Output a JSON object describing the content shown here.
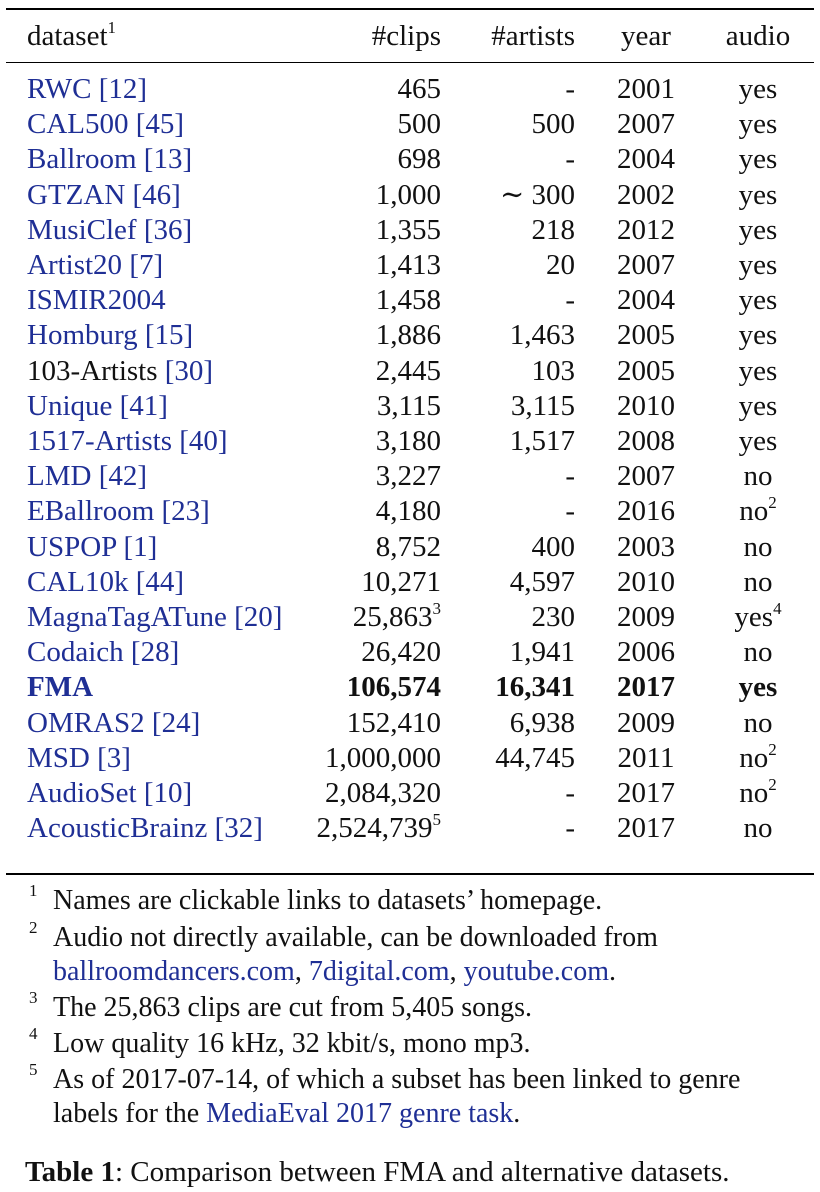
{
  "header": {
    "dataset": "dataset",
    "dataset_mark": "1",
    "clips": "#clips",
    "artists": "#artists",
    "year": "year",
    "audio": "audio"
  },
  "rows": [
    {
      "name": "RWC",
      "ref": "[12]",
      "clips": "465",
      "clips_mark": "",
      "artists": "-",
      "year": "2001",
      "audio": "yes",
      "audio_mark": ""
    },
    {
      "name": "CAL500",
      "ref": "[45]",
      "clips": "500",
      "clips_mark": "",
      "artists": "500",
      "year": "2007",
      "audio": "yes",
      "audio_mark": ""
    },
    {
      "name": "Ballroom",
      "ref": "[13]",
      "clips": "698",
      "clips_mark": "",
      "artists": "-",
      "year": "2004",
      "audio": "yes",
      "audio_mark": ""
    },
    {
      "name": "GTZAN",
      "ref": "[46]",
      "clips": "1,000",
      "clips_mark": "",
      "artists": "∼ 300",
      "year": "2002",
      "audio": "yes",
      "audio_mark": ""
    },
    {
      "name": "MusiClef",
      "ref": "[36]",
      "clips": "1,355",
      "clips_mark": "",
      "artists": "218",
      "year": "2012",
      "audio": "yes",
      "audio_mark": ""
    },
    {
      "name": "Artist20",
      "ref": "[7]",
      "clips": "1,413",
      "clips_mark": "",
      "artists": "20",
      "year": "2007",
      "audio": "yes",
      "audio_mark": ""
    },
    {
      "name": "ISMIR2004",
      "ref": "",
      "clips": "1,458",
      "clips_mark": "",
      "artists": "-",
      "year": "2004",
      "audio": "yes",
      "audio_mark": ""
    },
    {
      "name": "Homburg",
      "ref": "[15]",
      "clips": "1,886",
      "clips_mark": "",
      "artists": "1,463",
      "year": "2005",
      "audio": "yes",
      "audio_mark": ""
    },
    {
      "name": "103-Artists",
      "ref": "[30]",
      "clips": "2,445",
      "clips_mark": "",
      "artists": "103",
      "year": "2005",
      "audio": "yes",
      "audio_mark": "",
      "nolink": true
    },
    {
      "name": "Unique",
      "ref": "[41]",
      "clips": "3,115",
      "clips_mark": "",
      "artists": "3,115",
      "year": "2010",
      "audio": "yes",
      "audio_mark": ""
    },
    {
      "name": "1517-Artists",
      "ref": "[40]",
      "clips": "3,180",
      "clips_mark": "",
      "artists": "1,517",
      "year": "2008",
      "audio": "yes",
      "audio_mark": ""
    },
    {
      "name": "LMD",
      "ref": "[42]",
      "clips": "3,227",
      "clips_mark": "",
      "artists": "-",
      "year": "2007",
      "audio": "no",
      "audio_mark": ""
    },
    {
      "name": "EBallroom",
      "ref": "[23]",
      "clips": "4,180",
      "clips_mark": "",
      "artists": "-",
      "year": "2016",
      "audio": "no",
      "audio_mark": "2"
    },
    {
      "name": "USPOP",
      "ref": "[1]",
      "clips": "8,752",
      "clips_mark": "",
      "artists": "400",
      "year": "2003",
      "audio": "no",
      "audio_mark": ""
    },
    {
      "name": "CAL10k",
      "ref": "[44]",
      "clips": "10,271",
      "clips_mark": "",
      "artists": "4,597",
      "year": "2010",
      "audio": "no",
      "audio_mark": ""
    },
    {
      "name": "MagnaTagATune",
      "ref": "[20]",
      "clips": "25,863",
      "clips_mark": "3",
      "artists": "230",
      "year": "2009",
      "audio": "yes",
      "audio_mark": "4"
    },
    {
      "name": "Codaich",
      "ref": "[28]",
      "clips": "26,420",
      "clips_mark": "",
      "artists": "1,941",
      "year": "2006",
      "audio": "no",
      "audio_mark": ""
    },
    {
      "name": "FMA",
      "ref": "",
      "clips": "106,574",
      "clips_mark": "",
      "artists": "16,341",
      "year": "2017",
      "audio": "yes",
      "audio_mark": "",
      "bold": true
    },
    {
      "name": "OMRAS2",
      "ref": "[24]",
      "clips": "152,410",
      "clips_mark": "",
      "artists": "6,938",
      "year": "2009",
      "audio": "no",
      "audio_mark": ""
    },
    {
      "name": "MSD",
      "ref": "[3]",
      "clips": "1,000,000",
      "clips_mark": "",
      "artists": "44,745",
      "year": "2011",
      "audio": "no",
      "audio_mark": "2"
    },
    {
      "name": "AudioSet",
      "ref": "[10]",
      "clips": "2,084,320",
      "clips_mark": "",
      "artists": "-",
      "year": "2017",
      "audio": "no",
      "audio_mark": "2"
    },
    {
      "name": "AcousticBrainz",
      "ref": "[32]",
      "clips": "2,524,739",
      "clips_mark": "5",
      "artists": "-",
      "year": "2017",
      "audio": "no",
      "audio_mark": ""
    }
  ],
  "footnotes": [
    {
      "mark": "1",
      "text": "Names are clickable links to datasets’ homepage."
    },
    {
      "mark": "2",
      "text": "Audio not directly available, can be downloaded from",
      "links": [
        "ballroomdancers.com",
        "7digital.com",
        "youtube.com"
      ]
    },
    {
      "mark": "3",
      "text": "The 25,863 clips are cut from 5,405 songs."
    },
    {
      "mark": "4",
      "text": "Low quality 16 kHz, 32 kbit/s, mono mp3."
    },
    {
      "mark": "5",
      "text": "As of 2017-07-14, of which a subset has been linked to genre",
      "line2_prefix": "labels for the ",
      "line2_link": "MediaEval 2017 genre task",
      "line2_suffix": "."
    }
  ],
  "caption": {
    "label": "Table 1",
    "text": ": Comparison between FMA and alternative datasets."
  },
  "colors": {
    "link": "#1f2f95",
    "text": "#111111",
    "rule": "#000000"
  }
}
